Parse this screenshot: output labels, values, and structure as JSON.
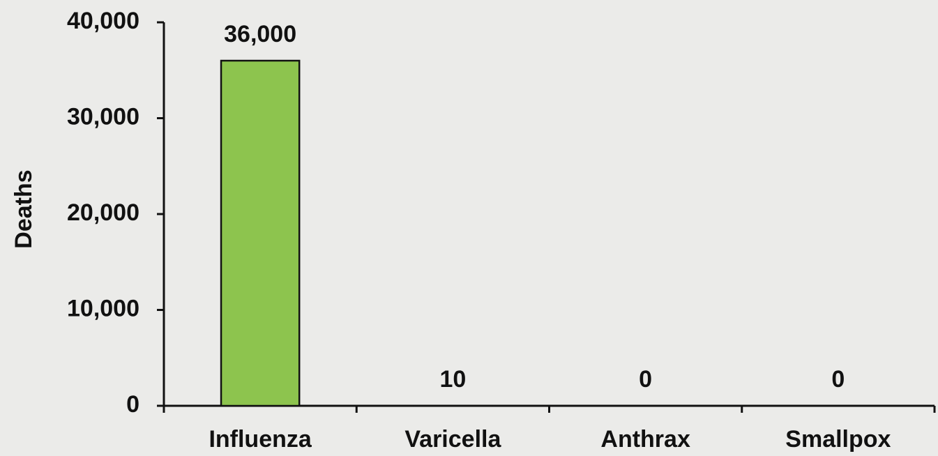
{
  "chart_data": {
    "type": "bar",
    "ylabel": "Deaths",
    "categories": [
      "Influenza",
      "Varicella",
      "Anthrax",
      "Smallpox"
    ],
    "values": [
      36000,
      10,
      0,
      0
    ],
    "value_labels": [
      "36,000",
      "10",
      "0",
      "0"
    ],
    "color": "#8dc44e",
    "ylim": [
      0,
      40000
    ],
    "yticks": [
      0,
      {
        "value": 10000,
        "label": "10,000"
      },
      {
        "value": 20000,
        "label": "20,000"
      },
      {
        "value": 30000,
        "label": "30,000"
      },
      {
        "value": 40000,
        "label": "40,000"
      }
    ],
    "grid": false
  }
}
